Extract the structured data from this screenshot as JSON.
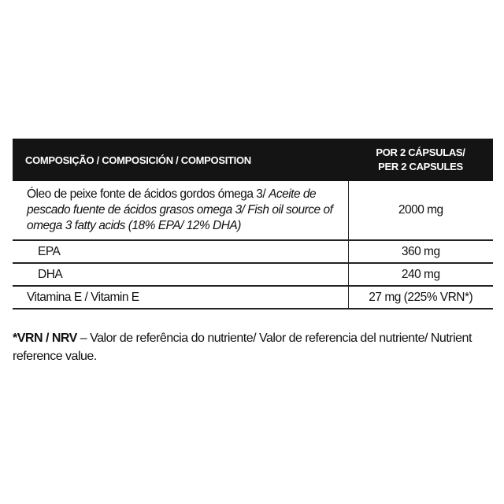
{
  "table": {
    "header": {
      "composition": "COMPOSIÇÃO / COMPOSICIÓN / COMPOSITION",
      "per_line1": "POR 2 CÁPSULAS/",
      "per_line2": "PER 2 CAPSULES"
    },
    "rows": [
      {
        "name_regular": "Óleo de peixe fonte de ácidos gordos ómega 3/ ",
        "name_italic": "Aceite de pescado fuente de ácidos grasos omega 3/ Fish oil source of omega 3 fatty acids (18% EPA/ 12% DHA)",
        "value": "2000 mg"
      },
      {
        "name": "EPA",
        "value": "360 mg"
      },
      {
        "name": "DHA",
        "value": "240 mg"
      },
      {
        "name": "Vitamina E / Vitamin E",
        "value": "27 mg (225% VRN*)"
      }
    ]
  },
  "footnote": {
    "bold": "*VRN / NRV",
    "text": " – Valor de referência do nutriente/ Valor de referencia del nutriente/ Nutrient reference value."
  }
}
